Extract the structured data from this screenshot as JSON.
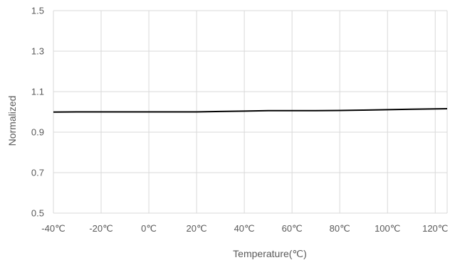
{
  "chart_data": {
    "type": "line",
    "title": "",
    "xlabel": "Temperature(℃)",
    "ylabel": "Normalized",
    "categories": [
      "-40℃",
      "-20℃",
      "0℃",
      "20℃",
      "40℃",
      "60℃",
      "80℃",
      "100℃",
      "120℃"
    ],
    "x": [
      -40,
      -20,
      0,
      20,
      40,
      60,
      80,
      100,
      120
    ],
    "ylim": [
      0.5,
      1.5
    ],
    "yticks": [
      "0.5",
      "0.7",
      "0.9",
      "1.1",
      "1.3",
      "1.5"
    ],
    "xlim": [
      -40,
      125
    ],
    "grid": true,
    "series": [
      {
        "x": [
          -40,
          -30,
          -20,
          -10,
          0,
          10,
          20,
          30,
          40,
          50,
          60,
          70,
          80,
          90,
          100,
          110,
          120,
          125
        ],
        "values": [
          0.999,
          1.0,
          1.0,
          1.0,
          1.0,
          1.0,
          1.0,
          1.002,
          1.004,
          1.006,
          1.006,
          1.006,
          1.007,
          1.009,
          1.011,
          1.013,
          1.015,
          1.016
        ]
      }
    ],
    "colors": {
      "line": "#000000",
      "grid": "#d9d9d9",
      "text": "#595959"
    }
  }
}
